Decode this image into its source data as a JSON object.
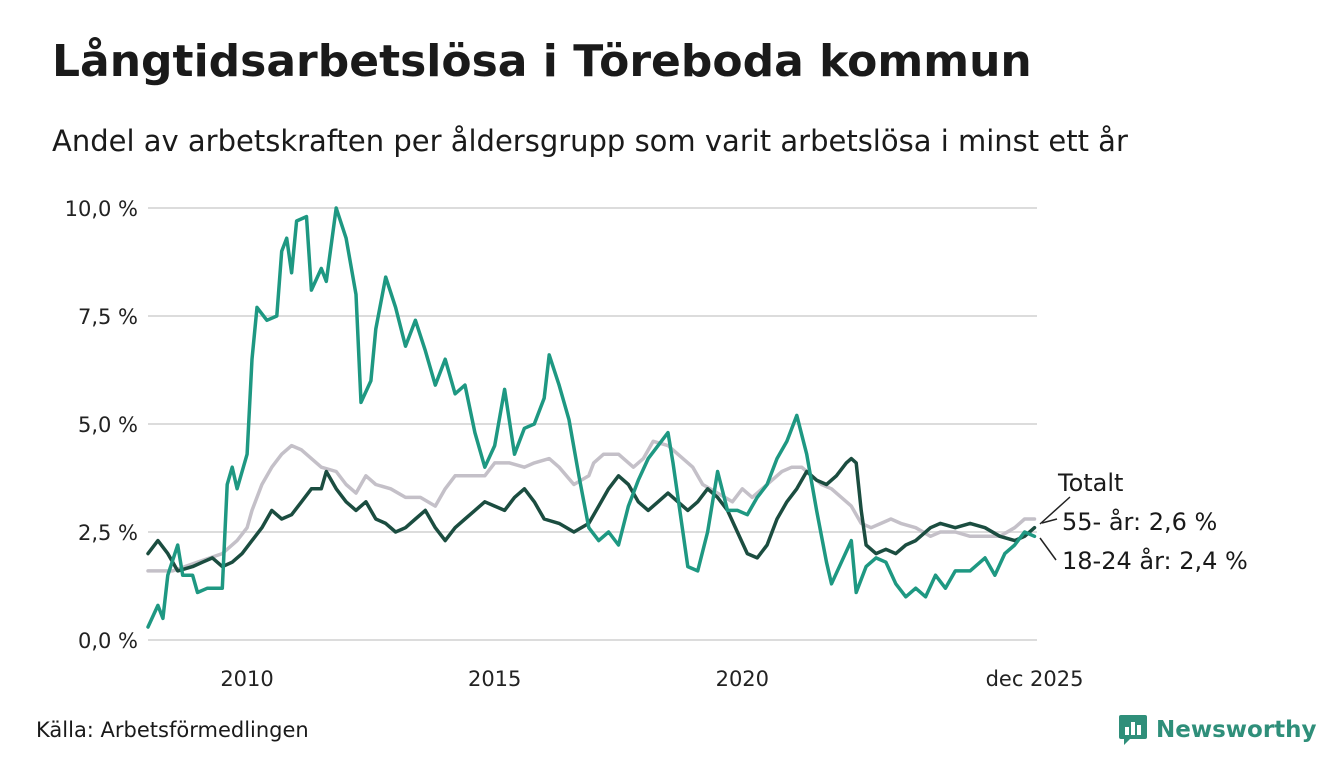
{
  "header": {
    "title": "Långtidsarbetslösa i Töreboda kommun",
    "subtitle": "Andel av arbetskraften per åldersgrupp som varit arbetslösa i minst ett år"
  },
  "footer": {
    "source": "Källa: Arbetsförmedlingen",
    "brand": "Newsworthy"
  },
  "chart_data": {
    "type": "line",
    "title": "Långtidsarbetslösa i Töreboda kommun",
    "subtitle": "Andel av arbetskraften per åldersgrupp som varit arbetslösa i minst ett år",
    "xlabel": "",
    "ylabel": "",
    "xlim": [
      2008.0,
      2025.95
    ],
    "ylim": [
      0,
      10
    ],
    "yticks": [
      {
        "value": 0,
        "label": "0,0 %"
      },
      {
        "value": 2.5,
        "label": "2,5 %"
      },
      {
        "value": 5,
        "label": "5,0 %"
      },
      {
        "value": 7.5,
        "label": "7,5 %"
      },
      {
        "value": 10,
        "label": "10,0 %"
      }
    ],
    "xticks": [
      {
        "value": 2010,
        "label": "2010"
      },
      {
        "value": 2015,
        "label": "2015"
      },
      {
        "value": 2020,
        "label": "2020"
      },
      {
        "value": 2025.9,
        "label": "dec 2025"
      }
    ],
    "grid": true,
    "series": [
      {
        "name": "Totalt",
        "label": "Totalt",
        "color": "#c4c0c8",
        "points": [
          [
            2008.0,
            1.6
          ],
          [
            2008.5,
            1.6
          ],
          [
            2009.0,
            1.8
          ],
          [
            2009.5,
            2.0
          ],
          [
            2009.8,
            2.3
          ],
          [
            2010.0,
            2.6
          ],
          [
            2010.1,
            3.0
          ],
          [
            2010.3,
            3.6
          ],
          [
            2010.5,
            4.0
          ],
          [
            2010.7,
            4.3
          ],
          [
            2010.9,
            4.5
          ],
          [
            2011.1,
            4.4
          ],
          [
            2011.3,
            4.2
          ],
          [
            2011.5,
            4.0
          ],
          [
            2011.8,
            3.9
          ],
          [
            2012.0,
            3.6
          ],
          [
            2012.2,
            3.4
          ],
          [
            2012.4,
            3.8
          ],
          [
            2012.6,
            3.6
          ],
          [
            2012.9,
            3.5
          ],
          [
            2013.2,
            3.3
          ],
          [
            2013.5,
            3.3
          ],
          [
            2013.8,
            3.1
          ],
          [
            2014.0,
            3.5
          ],
          [
            2014.2,
            3.8
          ],
          [
            2014.5,
            3.8
          ],
          [
            2014.8,
            3.8
          ],
          [
            2015.0,
            4.1
          ],
          [
            2015.3,
            4.1
          ],
          [
            2015.6,
            4.0
          ],
          [
            2015.8,
            4.1
          ],
          [
            2016.1,
            4.2
          ],
          [
            2016.3,
            4.0
          ],
          [
            2016.6,
            3.6
          ],
          [
            2016.9,
            3.8
          ],
          [
            2017.0,
            4.1
          ],
          [
            2017.2,
            4.3
          ],
          [
            2017.5,
            4.3
          ],
          [
            2017.8,
            4.0
          ],
          [
            2018.0,
            4.2
          ],
          [
            2018.2,
            4.6
          ],
          [
            2018.5,
            4.5
          ],
          [
            2018.8,
            4.2
          ],
          [
            2019.0,
            4.0
          ],
          [
            2019.2,
            3.6
          ],
          [
            2019.5,
            3.4
          ],
          [
            2019.8,
            3.2
          ],
          [
            2020.0,
            3.5
          ],
          [
            2020.2,
            3.3
          ],
          [
            2020.4,
            3.5
          ],
          [
            2020.6,
            3.7
          ],
          [
            2020.8,
            3.9
          ],
          [
            2021.0,
            4.0
          ],
          [
            2021.2,
            4.0
          ],
          [
            2021.4,
            3.8
          ],
          [
            2021.6,
            3.6
          ],
          [
            2021.8,
            3.5
          ],
          [
            2022.0,
            3.3
          ],
          [
            2022.2,
            3.1
          ],
          [
            2022.4,
            2.7
          ],
          [
            2022.6,
            2.6
          ],
          [
            2022.8,
            2.7
          ],
          [
            2023.0,
            2.8
          ],
          [
            2023.2,
            2.7
          ],
          [
            2023.5,
            2.6
          ],
          [
            2023.8,
            2.4
          ],
          [
            2024.0,
            2.5
          ],
          [
            2024.3,
            2.5
          ],
          [
            2024.6,
            2.4
          ],
          [
            2024.9,
            2.4
          ],
          [
            2025.2,
            2.4
          ],
          [
            2025.5,
            2.6
          ],
          [
            2025.7,
            2.8
          ],
          [
            2025.9,
            2.8
          ]
        ]
      },
      {
        "name": "55- år",
        "label": "55- år: 2,6 %",
        "color": "#1b4d40",
        "points": [
          [
            2008.0,
            2.0
          ],
          [
            2008.2,
            2.3
          ],
          [
            2008.4,
            2.0
          ],
          [
            2008.6,
            1.6
          ],
          [
            2008.9,
            1.7
          ],
          [
            2009.1,
            1.8
          ],
          [
            2009.3,
            1.9
          ],
          [
            2009.5,
            1.7
          ],
          [
            2009.7,
            1.8
          ],
          [
            2009.9,
            2.0
          ],
          [
            2010.1,
            2.3
          ],
          [
            2010.3,
            2.6
          ],
          [
            2010.5,
            3.0
          ],
          [
            2010.7,
            2.8
          ],
          [
            2010.9,
            2.9
          ],
          [
            2011.1,
            3.2
          ],
          [
            2011.3,
            3.5
          ],
          [
            2011.5,
            3.5
          ],
          [
            2011.6,
            3.9
          ],
          [
            2011.8,
            3.5
          ],
          [
            2012.0,
            3.2
          ],
          [
            2012.2,
            3.0
          ],
          [
            2012.4,
            3.2
          ],
          [
            2012.6,
            2.8
          ],
          [
            2012.8,
            2.7
          ],
          [
            2013.0,
            2.5
          ],
          [
            2013.2,
            2.6
          ],
          [
            2013.4,
            2.8
          ],
          [
            2013.6,
            3.0
          ],
          [
            2013.8,
            2.6
          ],
          [
            2014.0,
            2.3
          ],
          [
            2014.2,
            2.6
          ],
          [
            2014.4,
            2.8
          ],
          [
            2014.6,
            3.0
          ],
          [
            2014.8,
            3.2
          ],
          [
            2015.0,
            3.1
          ],
          [
            2015.2,
            3.0
          ],
          [
            2015.4,
            3.3
          ],
          [
            2015.6,
            3.5
          ],
          [
            2015.8,
            3.2
          ],
          [
            2016.0,
            2.8
          ],
          [
            2016.3,
            2.7
          ],
          [
            2016.6,
            2.5
          ],
          [
            2016.9,
            2.7
          ],
          [
            2017.1,
            3.1
          ],
          [
            2017.3,
            3.5
          ],
          [
            2017.5,
            3.8
          ],
          [
            2017.7,
            3.6
          ],
          [
            2017.9,
            3.2
          ],
          [
            2018.1,
            3.0
          ],
          [
            2018.3,
            3.2
          ],
          [
            2018.5,
            3.4
          ],
          [
            2018.7,
            3.2
          ],
          [
            2018.9,
            3.0
          ],
          [
            2019.1,
            3.2
          ],
          [
            2019.3,
            3.5
          ],
          [
            2019.5,
            3.3
          ],
          [
            2019.7,
            3.0
          ],
          [
            2019.9,
            2.5
          ],
          [
            2020.1,
            2.0
          ],
          [
            2020.3,
            1.9
          ],
          [
            2020.5,
            2.2
          ],
          [
            2020.7,
            2.8
          ],
          [
            2020.9,
            3.2
          ],
          [
            2021.1,
            3.5
          ],
          [
            2021.3,
            3.9
          ],
          [
            2021.5,
            3.7
          ],
          [
            2021.7,
            3.6
          ],
          [
            2021.9,
            3.8
          ],
          [
            2022.1,
            4.1
          ],
          [
            2022.2,
            4.2
          ],
          [
            2022.3,
            4.1
          ],
          [
            2022.4,
            3.0
          ],
          [
            2022.5,
            2.2
          ],
          [
            2022.7,
            2.0
          ],
          [
            2022.9,
            2.1
          ],
          [
            2023.1,
            2.0
          ],
          [
            2023.3,
            2.2
          ],
          [
            2023.5,
            2.3
          ],
          [
            2023.8,
            2.6
          ],
          [
            2024.0,
            2.7
          ],
          [
            2024.3,
            2.6
          ],
          [
            2024.6,
            2.7
          ],
          [
            2024.9,
            2.6
          ],
          [
            2025.2,
            2.4
          ],
          [
            2025.5,
            2.3
          ],
          [
            2025.7,
            2.4
          ],
          [
            2025.9,
            2.6
          ]
        ]
      },
      {
        "name": "18-24 år",
        "label": "18-24 år: 2,4 %",
        "color": "#1e9882",
        "points": [
          [
            2008.0,
            0.3
          ],
          [
            2008.2,
            0.8
          ],
          [
            2008.3,
            0.5
          ],
          [
            2008.4,
            1.5
          ],
          [
            2008.6,
            2.2
          ],
          [
            2008.7,
            1.5
          ],
          [
            2008.9,
            1.5
          ],
          [
            2009.0,
            1.1
          ],
          [
            2009.2,
            1.2
          ],
          [
            2009.5,
            1.2
          ],
          [
            2009.6,
            3.6
          ],
          [
            2009.7,
            4.0
          ],
          [
            2009.8,
            3.5
          ],
          [
            2010.0,
            4.3
          ],
          [
            2010.1,
            6.5
          ],
          [
            2010.2,
            7.7
          ],
          [
            2010.4,
            7.4
          ],
          [
            2010.6,
            7.5
          ],
          [
            2010.7,
            9.0
          ],
          [
            2010.8,
            9.3
          ],
          [
            2010.9,
            8.5
          ],
          [
            2011.0,
            9.7
          ],
          [
            2011.2,
            9.8
          ],
          [
            2011.3,
            8.1
          ],
          [
            2011.5,
            8.6
          ],
          [
            2011.6,
            8.3
          ],
          [
            2011.8,
            10.0
          ],
          [
            2012.0,
            9.3
          ],
          [
            2012.2,
            8.0
          ],
          [
            2012.3,
            5.5
          ],
          [
            2012.5,
            6.0
          ],
          [
            2012.6,
            7.2
          ],
          [
            2012.8,
            8.4
          ],
          [
            2013.0,
            7.7
          ],
          [
            2013.2,
            6.8
          ],
          [
            2013.4,
            7.4
          ],
          [
            2013.6,
            6.7
          ],
          [
            2013.8,
            5.9
          ],
          [
            2014.0,
            6.5
          ],
          [
            2014.2,
            5.7
          ],
          [
            2014.4,
            5.9
          ],
          [
            2014.6,
            4.8
          ],
          [
            2014.8,
            4.0
          ],
          [
            2015.0,
            4.5
          ],
          [
            2015.2,
            5.8
          ],
          [
            2015.4,
            4.3
          ],
          [
            2015.6,
            4.9
          ],
          [
            2015.8,
            5.0
          ],
          [
            2016.0,
            5.6
          ],
          [
            2016.1,
            6.6
          ],
          [
            2016.3,
            5.9
          ],
          [
            2016.5,
            5.1
          ],
          [
            2016.7,
            3.8
          ],
          [
            2016.9,
            2.6
          ],
          [
            2017.1,
            2.3
          ],
          [
            2017.3,
            2.5
          ],
          [
            2017.5,
            2.2
          ],
          [
            2017.7,
            3.1
          ],
          [
            2017.9,
            3.7
          ],
          [
            2018.1,
            4.2
          ],
          [
            2018.3,
            4.5
          ],
          [
            2018.5,
            4.8
          ],
          [
            2018.6,
            4.1
          ],
          [
            2018.8,
            2.5
          ],
          [
            2018.9,
            1.7
          ],
          [
            2019.1,
            1.6
          ],
          [
            2019.3,
            2.5
          ],
          [
            2019.5,
            3.9
          ],
          [
            2019.7,
            3.0
          ],
          [
            2019.9,
            3.0
          ],
          [
            2020.1,
            2.9
          ],
          [
            2020.3,
            3.3
          ],
          [
            2020.5,
            3.6
          ],
          [
            2020.7,
            4.2
          ],
          [
            2020.9,
            4.6
          ],
          [
            2021.1,
            5.2
          ],
          [
            2021.3,
            4.3
          ],
          [
            2021.5,
            3.0
          ],
          [
            2021.7,
            1.8
          ],
          [
            2021.8,
            1.3
          ],
          [
            2022.0,
            1.8
          ],
          [
            2022.2,
            2.3
          ],
          [
            2022.3,
            1.1
          ],
          [
            2022.5,
            1.7
          ],
          [
            2022.7,
            1.9
          ],
          [
            2022.9,
            1.8
          ],
          [
            2023.1,
            1.3
          ],
          [
            2023.3,
            1.0
          ],
          [
            2023.5,
            1.2
          ],
          [
            2023.7,
            1.0
          ],
          [
            2023.9,
            1.5
          ],
          [
            2024.1,
            1.2
          ],
          [
            2024.3,
            1.6
          ],
          [
            2024.6,
            1.6
          ],
          [
            2024.9,
            1.9
          ],
          [
            2025.1,
            1.5
          ],
          [
            2025.3,
            2.0
          ],
          [
            2025.5,
            2.2
          ],
          [
            2025.7,
            2.5
          ],
          [
            2025.9,
            2.4
          ]
        ]
      }
    ]
  }
}
